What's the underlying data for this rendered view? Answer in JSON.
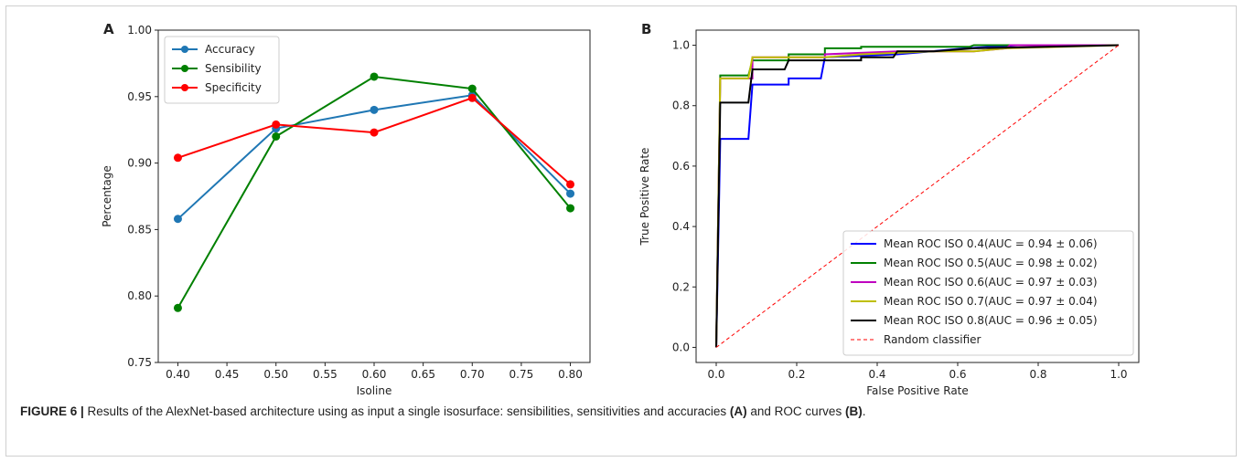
{
  "caption": {
    "label": "FIGURE 6 |",
    "text": " Results of the AlexNet-based architecture using as input a single isosurface: sensibilities, sensitivities and accuracies ",
    "ref_a": "(A)",
    "mid": " and ROC curves ",
    "ref_b": "(B)",
    "end": "."
  },
  "chart_data": [
    {
      "panel": "A",
      "type": "line",
      "xlabel": "Isoline",
      "ylabel": "Percentage",
      "xlim": [
        0.38,
        0.82
      ],
      "ylim": [
        0.75,
        1.0
      ],
      "xticks": [
        "0.40",
        "0.45",
        "0.50",
        "0.55",
        "0.60",
        "0.65",
        "0.70",
        "0.75",
        "0.80"
      ],
      "yticks": [
        "0.75",
        "0.80",
        "0.85",
        "0.90",
        "0.95",
        "1.00"
      ],
      "legend_position": "upper-left",
      "x": [
        0.4,
        0.5,
        0.6,
        0.7,
        0.8
      ],
      "series": [
        {
          "name": "Accuracy",
          "color": "#1f77b4",
          "values": [
            0.858,
            0.926,
            0.94,
            0.951,
            0.877
          ]
        },
        {
          "name": "Sensibility",
          "color": "#008000",
          "values": [
            0.791,
            0.92,
            0.965,
            0.956,
            0.866
          ]
        },
        {
          "name": "Specificity",
          "color": "#ff0000",
          "values": [
            0.904,
            0.929,
            0.923,
            0.949,
            0.884
          ]
        }
      ]
    },
    {
      "panel": "B",
      "type": "line",
      "xlabel": "False Positive Rate",
      "ylabel": "True Positive Rate",
      "xlim": [
        -0.05,
        1.05
      ],
      "ylim": [
        -0.05,
        1.05
      ],
      "xticks": [
        "0.0",
        "0.2",
        "0.4",
        "0.6",
        "0.8",
        "1.0"
      ],
      "yticks": [
        "0.0",
        "0.2",
        "0.4",
        "0.6",
        "0.8",
        "1.0"
      ],
      "legend_position": "lower-right",
      "series": [
        {
          "name": "Mean ROC  ISO 0.4(AUC = 0.94 ± 0.06)",
          "color": "#0000ff",
          "points": [
            [
              0,
              0
            ],
            [
              0.01,
              0.69
            ],
            [
              0.08,
              0.69
            ],
            [
              0.09,
              0.87
            ],
            [
              0.18,
              0.87
            ],
            [
              0.18,
              0.89
            ],
            [
              0.26,
              0.89
            ],
            [
              0.27,
              0.96
            ],
            [
              0.45,
              0.97
            ],
            [
              0.62,
              0.99
            ],
            [
              0.75,
              1.0
            ],
            [
              1,
              1
            ]
          ]
        },
        {
          "name": "Mean ROC  ISO 0.5(AUC = 0.98 ± 0.02)",
          "color": "#008000",
          "points": [
            [
              0,
              0
            ],
            [
              0.01,
              0.9
            ],
            [
              0.08,
              0.9
            ],
            [
              0.09,
              0.95
            ],
            [
              0.18,
              0.95
            ],
            [
              0.18,
              0.97
            ],
            [
              0.27,
              0.97
            ],
            [
              0.27,
              0.99
            ],
            [
              0.36,
              0.99
            ],
            [
              0.36,
              0.995
            ],
            [
              0.63,
              0.995
            ],
            [
              0.64,
              1.0
            ],
            [
              1,
              1
            ]
          ]
        },
        {
          "name": "Mean ROC  ISO 0.6(AUC = 0.97 ± 0.03)",
          "color": "#bf00bf",
          "points": [
            [
              0,
              0
            ],
            [
              0.01,
              0.89
            ],
            [
              0.09,
              0.89
            ],
            [
              0.09,
              0.96
            ],
            [
              0.27,
              0.96
            ],
            [
              0.27,
              0.97
            ],
            [
              0.45,
              0.98
            ],
            [
              0.64,
              0.98
            ],
            [
              0.72,
              0.99
            ],
            [
              0.73,
              1.0
            ],
            [
              1,
              1
            ]
          ]
        },
        {
          "name": "Mean ROC  ISO 0.7(AUC = 0.97 ± 0.04)",
          "color": "#bfbf00",
          "points": [
            [
              0,
              0
            ],
            [
              0.01,
              0.89
            ],
            [
              0.08,
              0.89
            ],
            [
              0.09,
              0.96
            ],
            [
              0.27,
              0.96
            ],
            [
              0.36,
              0.97
            ],
            [
              0.54,
              0.98
            ],
            [
              0.64,
              0.98
            ],
            [
              0.72,
              0.99
            ],
            [
              1,
              1
            ]
          ]
        },
        {
          "name": "Mean ROC  ISO 0.8(AUC = 0.96 ± 0.05)",
          "color": "#000000",
          "points": [
            [
              0,
              0
            ],
            [
              0.01,
              0.81
            ],
            [
              0.08,
              0.81
            ],
            [
              0.09,
              0.92
            ],
            [
              0.17,
              0.92
            ],
            [
              0.18,
              0.95
            ],
            [
              0.36,
              0.95
            ],
            [
              0.36,
              0.96
            ],
            [
              0.44,
              0.96
            ],
            [
              0.45,
              0.98
            ],
            [
              0.54,
              0.98
            ],
            [
              0.64,
              0.99
            ],
            [
              1,
              1
            ]
          ]
        },
        {
          "name": "Random classifier",
          "color": "#ff0000",
          "dashed": true,
          "points": [
            [
              0,
              0
            ],
            [
              1,
              1
            ]
          ]
        }
      ]
    }
  ]
}
